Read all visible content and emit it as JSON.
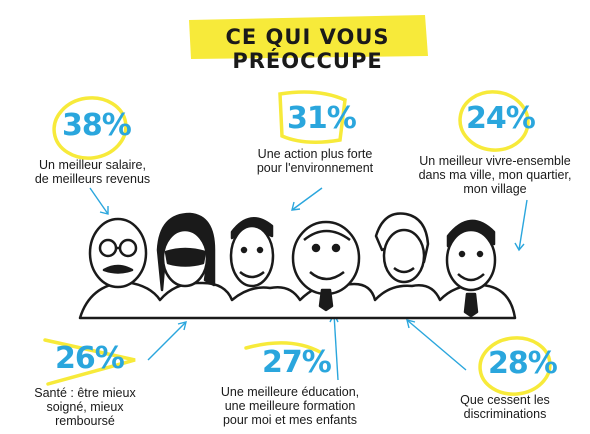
{
  "title": "CE QUI VOUS PRÉOCCUPE",
  "colors": {
    "highlight": "#f7ea3a",
    "accent": "#2aa6dd",
    "ink": "#1a1a1a"
  },
  "stats": [
    {
      "percent": "38%",
      "lines": [
        "Un meilleur salaire,",
        "de meilleurs revenus"
      ]
    },
    {
      "percent": "31%",
      "lines": [
        "Une action plus forte",
        "pour l'environnement"
      ]
    },
    {
      "percent": "24%",
      "lines": [
        "Un meilleur vivre-ensemble",
        "dans ma ville, mon quartier,",
        "mon village"
      ]
    },
    {
      "percent": "26%",
      "lines": [
        "Santé : être mieux",
        "soigné, mieux",
        "remboursé"
      ]
    },
    {
      "percent": "27%",
      "lines": [
        "Une meilleure éducation,",
        "une meilleure formation",
        "pour moi et mes enfants"
      ]
    },
    {
      "percent": "28%",
      "lines": [
        "Que cessent les",
        "discriminations"
      ]
    }
  ]
}
